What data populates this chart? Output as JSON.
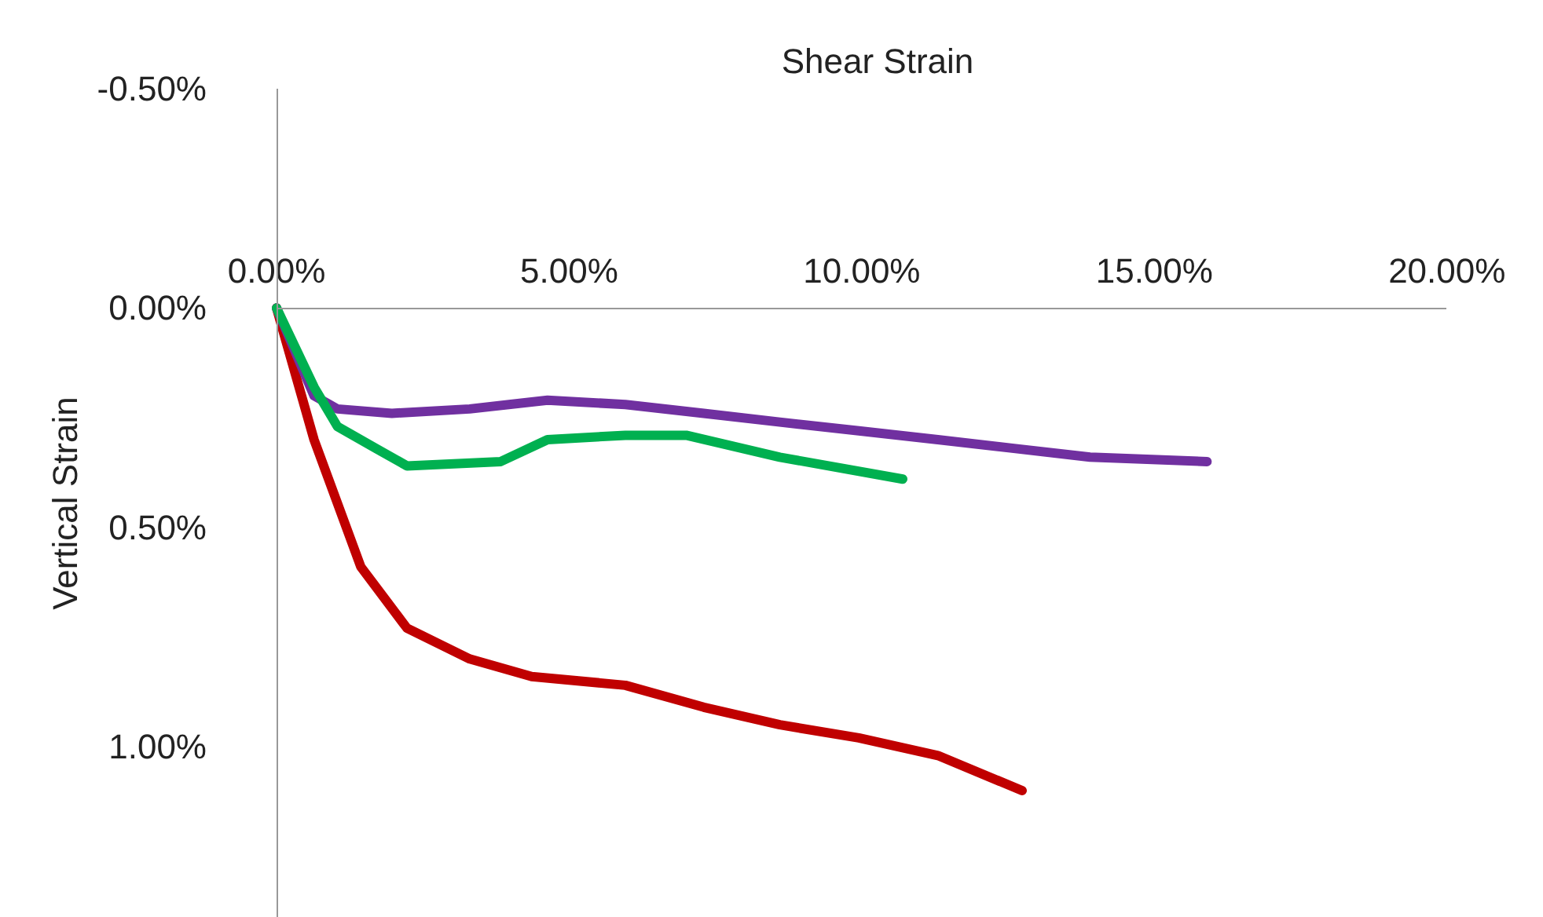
{
  "chart_data": {
    "type": "line",
    "xlabel": "Shear Strain",
    "ylabel": "Vertical Strain",
    "line_style": "solid",
    "xlim": [
      0,
      20
    ],
    "ylim": [
      1.39,
      -0.5
    ],
    "xticks": [
      {
        "value": 0,
        "label": "0.00%"
      },
      {
        "value": 5,
        "label": "5.00%"
      },
      {
        "value": 10,
        "label": "10.00%"
      },
      {
        "value": 15,
        "label": "15.00%"
      },
      {
        "value": 20,
        "label": "20.00%"
      }
    ],
    "yticks": [
      {
        "value": -0.5,
        "label": "-0.50%"
      },
      {
        "value": 0,
        "label": "0.00%"
      },
      {
        "value": 0.5,
        "label": "0.50%"
      },
      {
        "value": 1,
        "label": "1.00%"
      }
    ],
    "series": [
      {
        "color": "#c00000",
        "x": [
          0,
          0.64,
          1.44,
          2.23,
          3.3,
          4.36,
          5.96,
          7.3,
          8.6,
          9.95,
          11.3,
          12.74
        ],
        "values": [
          0,
          0.3,
          0.59,
          0.73,
          0.8,
          0.84,
          0.86,
          0.91,
          0.95,
          0.98,
          1.02,
          1.1
        ]
      },
      {
        "color": "#7030a0",
        "x": [
          0,
          0.64,
          1.04,
          1.97,
          3.3,
          4.63,
          5.96,
          7.3,
          8.6,
          9.95,
          11.3,
          12.6,
          13.9,
          15.9
        ],
        "values": [
          0,
          0.2,
          0.23,
          0.24,
          0.23,
          0.21,
          0.22,
          0.24,
          0.26,
          0.28,
          0.3,
          0.32,
          0.34,
          0.35
        ]
      },
      {
        "color": "#00b050",
        "x": [
          0,
          0.64,
          1.04,
          1.7,
          2.23,
          3.83,
          4.63,
          5.96,
          7.0,
          8.6,
          10.7
        ],
        "values": [
          0,
          0.18,
          0.27,
          0.32,
          0.36,
          0.35,
          0.3,
          0.29,
          0.29,
          0.34,
          0.39
        ]
      }
    ]
  }
}
